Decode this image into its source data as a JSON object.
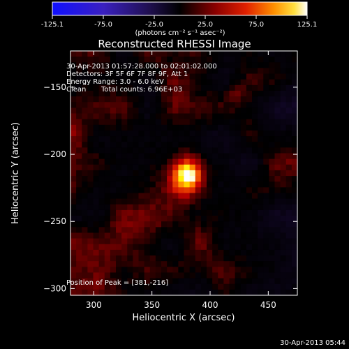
{
  "colorbar": {
    "ticks": [
      "-125.1",
      "-75.0",
      "-25.0",
      "25.0",
      "75.0",
      "125.1"
    ],
    "unit_label": "(photons cm⁻² s⁻¹ asec⁻²)"
  },
  "chart_data": {
    "type": "heatmap",
    "title": "Reconstructed RHESSI Image",
    "xlabel": "Heliocentric X (arcsec)",
    "ylabel": "Heliocentric Y (arcsec)",
    "xlim": [
      280,
      475
    ],
    "ylim": [
      -305,
      -123
    ],
    "xticks": [
      300,
      350,
      400,
      450
    ],
    "yticks": [
      -150,
      -200,
      -250,
      -300
    ],
    "zlim": [
      -125.1,
      125.1
    ],
    "colormap": "RHESSI red-temperature (blue-purple negative, black zero, red-yellow-white positive)",
    "peak": {
      "x": 381,
      "y": -216,
      "value": 125.1
    },
    "secondary_sources": [
      {
        "x": 422,
        "y": -155,
        "value": 30
      }
    ],
    "annotations": [
      "30-Apr-2013 01:57:28.000 to 02:01:02.000",
      "Detectors: 3F 5F 6F 7F 8F 9F, Att 1",
      "Energy Range: 3.0 - 6.0 keV",
      "Clean",
      "Total counts: 6.96E+03",
      "Position of Peak = [381,-216]"
    ]
  },
  "footer": {
    "timestamp": "30-Apr-2013 05:44"
  }
}
